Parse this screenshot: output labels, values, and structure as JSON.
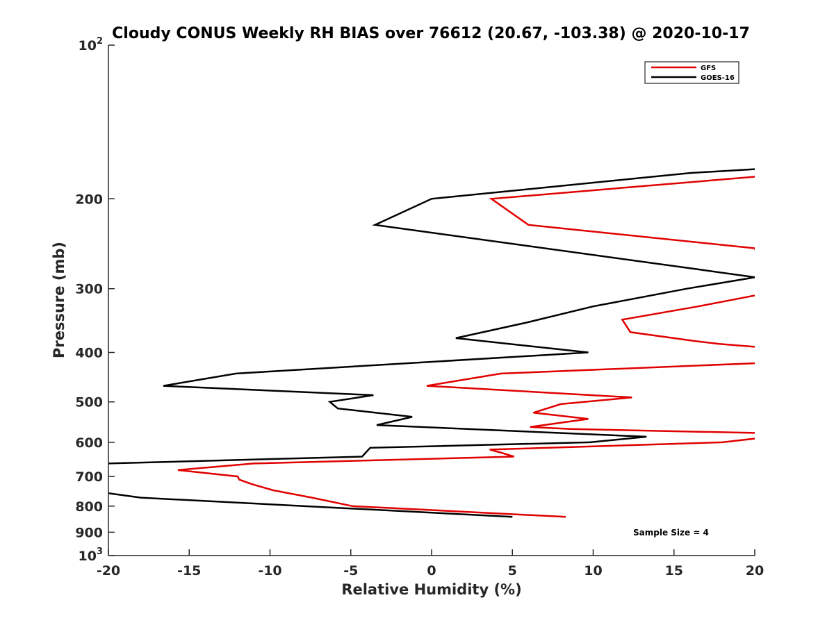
{
  "chart_data": {
    "type": "line",
    "title": "Cloudy CONUS Weekly RH BIAS over 76612 (20.67, -103.38) @ 2020-10-17",
    "xlabel": "Relative Humidity (%)",
    "ylabel": "Pressure (mb)",
    "xlim": [
      -20,
      20
    ],
    "ylim": [
      100,
      1000
    ],
    "yscale": "log",
    "y_reversed": true,
    "xticks": [
      -20,
      -15,
      -10,
      -5,
      0,
      5,
      10,
      15,
      20
    ],
    "xtick_labels": [
      "-20",
      "-15",
      "-10",
      "-5",
      "0",
      "5",
      "10",
      "15",
      "20"
    ],
    "yticks": [
      100,
      200,
      300,
      400,
      500,
      600,
      700,
      800,
      900,
      1000
    ],
    "ytick_labels": [
      {
        "base": "10",
        "sup": "2"
      },
      {
        "base": "200",
        "sup": ""
      },
      {
        "base": "300",
        "sup": ""
      },
      {
        "base": "400",
        "sup": ""
      },
      {
        "base": "500",
        "sup": ""
      },
      {
        "base": "600",
        "sup": ""
      },
      {
        "base": "700",
        "sup": ""
      },
      {
        "base": "800",
        "sup": ""
      },
      {
        "base": "900",
        "sup": ""
      },
      {
        "base": "10",
        "sup": "3"
      }
    ],
    "grid": false,
    "legend_position": "top-right",
    "series": [
      {
        "name": "GFS",
        "color": "#e00000",
        "x": [
          21,
          3.7,
          6,
          20,
          21,
          16.5,
          11.8,
          12.3,
          16.3,
          17.8,
          20,
          21,
          20,
          4.3,
          -0.3,
          12.4,
          8,
          6.3,
          9.7,
          6.1,
          8.6,
          20,
          21,
          18,
          3.6,
          4.4,
          5.1,
          -11,
          -15.7,
          -12,
          -11.9,
          -11.1,
          -9.8,
          -7.4,
          -4.9,
          8.3
        ],
        "y": [
          180,
          200,
          225,
          250,
          305,
          325,
          345,
          365,
          380,
          385,
          390,
          410,
          420,
          440,
          465,
          490,
          505,
          525,
          540,
          560,
          565,
          575,
          585,
          600,
          620,
          630,
          640,
          660,
          680,
          700,
          710,
          725,
          745,
          770,
          800,
          840
        ]
      },
      {
        "name": "GOES-16",
        "color": "#000000",
        "x": [
          20,
          16,
          0,
          -3.5,
          16.5,
          20,
          15.8,
          10,
          5.8,
          1.5,
          9.7,
          -12.1,
          -16.6,
          -3.6,
          -6.3,
          -5.8,
          -1.2,
          -3.4,
          13.3,
          9.8,
          -3.8,
          -4.3,
          -20,
          -21,
          -20,
          -18,
          5
        ],
        "y": [
          175,
          178,
          200,
          225,
          275,
          285,
          300,
          325,
          350,
          375,
          400,
          440,
          465,
          485,
          500,
          515,
          535,
          555,
          585,
          600,
          615,
          640,
          660,
          660,
          755,
          770,
          840
        ]
      }
    ],
    "annotations": [
      "Sample Size = 4"
    ]
  }
}
